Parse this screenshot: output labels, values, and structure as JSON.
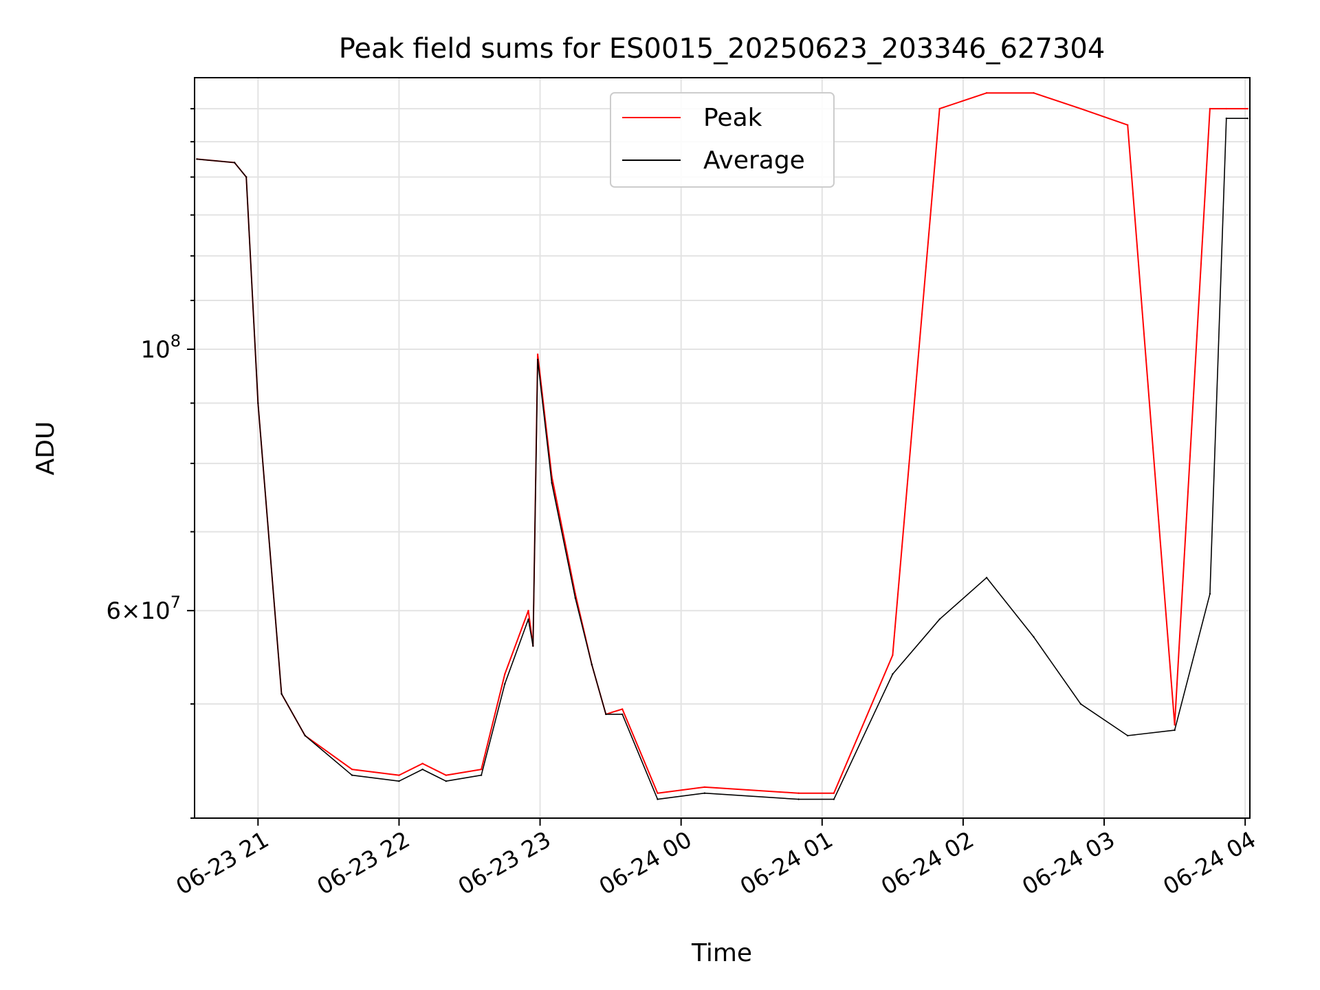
{
  "chart_data": {
    "type": "line",
    "title": "Peak field sums for ES0015_20250623_203346_627304",
    "xlabel": "Time",
    "ylabel": "ADU",
    "y_scale": "log",
    "x_ticks": [
      "06-23 21",
      "06-23 22",
      "06-23 23",
      "06-24 00",
      "06-24 01",
      "06-24 02",
      "06-24 03",
      "06-24 04"
    ],
    "y_tick_labels": [
      {
        "value": 100000000,
        "label": "10^8"
      },
      {
        "value": 60000000,
        "label": "6×10^7"
      }
    ],
    "xlim": [
      "2025-06-23 20:33",
      "2025-06-24 04:02"
    ],
    "ylim": [
      40000000,
      170000000
    ],
    "grid": true,
    "legend_position": "top-center",
    "series": [
      {
        "name": "Peak",
        "color": "#ff0000",
        "x": [
          "2025-06-23 20:34",
          "2025-06-23 20:50",
          "2025-06-23 20:55",
          "2025-06-23 21:00",
          "2025-06-23 21:10",
          "2025-06-23 21:20",
          "2025-06-23 21:40",
          "2025-06-23 22:00",
          "2025-06-23 22:10",
          "2025-06-23 22:20",
          "2025-06-23 22:35",
          "2025-06-23 22:45",
          "2025-06-23 22:55",
          "2025-06-23 22:57",
          "2025-06-23 22:59",
          "2025-06-23 23:05",
          "2025-06-23 23:15",
          "2025-06-23 23:22",
          "2025-06-23 23:28",
          "2025-06-23 23:35",
          "2025-06-23 23:50",
          "2025-06-24 00:10",
          "2025-06-24 00:50",
          "2025-06-24 01:05",
          "2025-06-24 01:30",
          "2025-06-24 01:50",
          "2025-06-24 02:10",
          "2025-06-24 02:30",
          "2025-06-24 02:50",
          "2025-06-24 03:10",
          "2025-06-24 03:30",
          "2025-06-24 03:45",
          "2025-06-24 03:52",
          "2025-06-24 04:01"
        ],
        "values": [
          145000000,
          144000000,
          140000000,
          90000000,
          51000000,
          47000000,
          44000000,
          43500000,
          44500000,
          43500000,
          44000000,
          53000000,
          60000000,
          56000000,
          99000000,
          78000000,
          62000000,
          54000000,
          49000000,
          49500000,
          42000000,
          42500000,
          42000000,
          42000000,
          55000000,
          160000000,
          165000000,
          165000000,
          160000000,
          155000000,
          48000000,
          160000000,
          160000000,
          160000000
        ]
      },
      {
        "name": "Average",
        "color": "#000000",
        "x": [
          "2025-06-23 20:34",
          "2025-06-23 20:50",
          "2025-06-23 20:55",
          "2025-06-23 21:00",
          "2025-06-23 21:10",
          "2025-06-23 21:20",
          "2025-06-23 21:40",
          "2025-06-23 22:00",
          "2025-06-23 22:10",
          "2025-06-23 22:20",
          "2025-06-23 22:35",
          "2025-06-23 22:45",
          "2025-06-23 22:55",
          "2025-06-23 22:57",
          "2025-06-23 22:59",
          "2025-06-23 23:05",
          "2025-06-23 23:15",
          "2025-06-23 23:22",
          "2025-06-23 23:28",
          "2025-06-23 23:35",
          "2025-06-23 23:50",
          "2025-06-24 00:10",
          "2025-06-24 00:50",
          "2025-06-24 01:05",
          "2025-06-24 01:30",
          "2025-06-24 01:50",
          "2025-06-24 02:10",
          "2025-06-24 02:30",
          "2025-06-24 02:50",
          "2025-06-24 03:10",
          "2025-06-24 03:30",
          "2025-06-24 03:45",
          "2025-06-24 03:52",
          "2025-06-24 04:01"
        ],
        "values": [
          145000000,
          144000000,
          140000000,
          90000000,
          51000000,
          47000000,
          43500000,
          43000000,
          44000000,
          43000000,
          43500000,
          52000000,
          59000000,
          56000000,
          98000000,
          77000000,
          61500000,
          54000000,
          49000000,
          49000000,
          41500000,
          42000000,
          41500000,
          41500000,
          53000000,
          59000000,
          64000000,
          57000000,
          50000000,
          47000000,
          47500000,
          62000000,
          157000000,
          157000000
        ]
      }
    ]
  }
}
